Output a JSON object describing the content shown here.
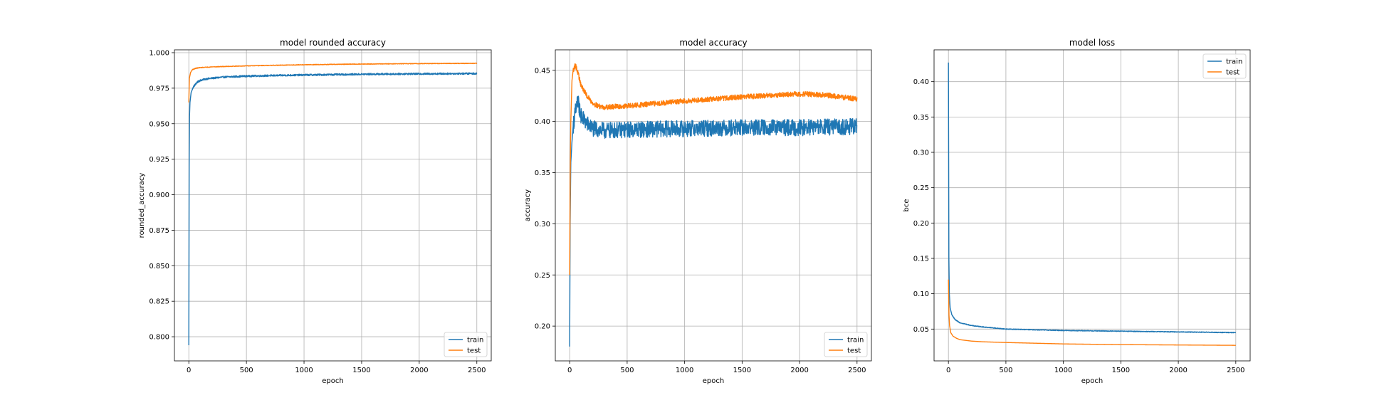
{
  "chart_data": [
    {
      "type": "line",
      "title": "model rounded accuracy",
      "xlabel": "epoch",
      "ylabel": "rounded_accuracy",
      "xlim": [
        -125,
        2625
      ],
      "ylim": [
        0.783,
        1.002
      ],
      "xticks": [
        0,
        500,
        1000,
        1500,
        2000,
        2500
      ],
      "yticks": [
        0.8,
        0.825,
        0.85,
        0.875,
        0.9,
        0.925,
        0.95,
        0.975,
        1.0
      ],
      "ytick_decimals": 3,
      "grid": true,
      "legend_position": "lower-right",
      "series": [
        {
          "name": "train",
          "color": "#1f77b4",
          "noise": 0.0006,
          "points": [
            [
              0,
              0.794
            ],
            [
              3,
              0.92
            ],
            [
              6,
              0.955
            ],
            [
              10,
              0.965
            ],
            [
              20,
              0.972
            ],
            [
              40,
              0.976
            ],
            [
              70,
              0.979
            ],
            [
              100,
              0.9805
            ],
            [
              150,
              0.9815
            ],
            [
              200,
              0.982
            ],
            [
              300,
              0.9828
            ],
            [
              500,
              0.9835
            ],
            [
              800,
              0.984
            ],
            [
              1000,
              0.9843
            ],
            [
              1500,
              0.9848
            ],
            [
              2000,
              0.9851
            ],
            [
              2500,
              0.9853
            ]
          ]
        },
        {
          "name": "test",
          "color": "#ff7f0e",
          "noise": 0.0002,
          "points": [
            [
              0,
              0.965
            ],
            [
              5,
              0.982
            ],
            [
              15,
              0.986
            ],
            [
              30,
              0.988
            ],
            [
              60,
              0.989
            ],
            [
              100,
              0.9895
            ],
            [
              200,
              0.99
            ],
            [
              500,
              0.9907
            ],
            [
              1000,
              0.9915
            ],
            [
              1500,
              0.992
            ],
            [
              2000,
              0.9923
            ],
            [
              2500,
              0.9925
            ]
          ]
        }
      ]
    },
    {
      "type": "line",
      "title": "model accuracy",
      "xlabel": "epoch",
      "ylabel": "accuracy",
      "xlim": [
        -125,
        2625
      ],
      "ylim": [
        0.166,
        0.47
      ],
      "xticks": [
        0,
        500,
        1000,
        1500,
        2000,
        2500
      ],
      "yticks": [
        0.2,
        0.25,
        0.3,
        0.35,
        0.4,
        0.45
      ],
      "ytick_decimals": 2,
      "grid": true,
      "legend_position": "lower-right",
      "series": [
        {
          "name": "train",
          "color": "#1f77b4",
          "noise": 0.008,
          "points": [
            [
              0,
              0.18
            ],
            [
              4,
              0.3
            ],
            [
              10,
              0.36
            ],
            [
              20,
              0.38
            ],
            [
              30,
              0.395
            ],
            [
              50,
              0.41
            ],
            [
              70,
              0.42
            ],
            [
              100,
              0.405
            ],
            [
              150,
              0.398
            ],
            [
              200,
              0.393
            ],
            [
              300,
              0.391
            ],
            [
              500,
              0.392
            ],
            [
              1000,
              0.393
            ],
            [
              1500,
              0.394
            ],
            [
              2000,
              0.394
            ],
            [
              2500,
              0.395
            ]
          ]
        },
        {
          "name": "test",
          "color": "#ff7f0e",
          "noise": 0.0025,
          "points": [
            [
              0,
              0.25
            ],
            [
              5,
              0.35
            ],
            [
              10,
              0.4
            ],
            [
              20,
              0.44
            ],
            [
              30,
              0.45
            ],
            [
              50,
              0.455
            ],
            [
              70,
              0.448
            ],
            [
              100,
              0.435
            ],
            [
              150,
              0.425
            ],
            [
              200,
              0.418
            ],
            [
              250,
              0.415
            ],
            [
              300,
              0.414
            ],
            [
              500,
              0.415
            ],
            [
              800,
              0.418
            ],
            [
              1000,
              0.42
            ],
            [
              1500,
              0.424
            ],
            [
              2000,
              0.427
            ],
            [
              2200,
              0.426
            ],
            [
              2500,
              0.422
            ]
          ]
        }
      ]
    },
    {
      "type": "line",
      "title": "model loss",
      "xlabel": "epoch",
      "ylabel": "bce",
      "xlim": [
        -125,
        2625
      ],
      "ylim": [
        0.005,
        0.445
      ],
      "xticks": [
        0,
        500,
        1000,
        1500,
        2000,
        2500
      ],
      "yticks": [
        0.05,
        0.1,
        0.15,
        0.2,
        0.25,
        0.3,
        0.35,
        0.4
      ],
      "ytick_decimals": 2,
      "grid": true,
      "legend_position": "upper-right",
      "series": [
        {
          "name": "train",
          "color": "#1f77b4",
          "noise": 0.0005,
          "points": [
            [
              0,
              0.427
            ],
            [
              2,
              0.3
            ],
            [
              4,
              0.15
            ],
            [
              8,
              0.1
            ],
            [
              15,
              0.08
            ],
            [
              30,
              0.07
            ],
            [
              60,
              0.063
            ],
            [
              100,
              0.059
            ],
            [
              200,
              0.055
            ],
            [
              300,
              0.053
            ],
            [
              500,
              0.05
            ],
            [
              1000,
              0.048
            ],
            [
              1500,
              0.047
            ],
            [
              2000,
              0.046
            ],
            [
              2500,
              0.045
            ]
          ]
        },
        {
          "name": "test",
          "color": "#ff7f0e",
          "noise": 0.0,
          "points": [
            [
              0,
              0.12
            ],
            [
              5,
              0.07
            ],
            [
              10,
              0.055
            ],
            [
              20,
              0.045
            ],
            [
              40,
              0.04
            ],
            [
              70,
              0.037
            ],
            [
              100,
              0.035
            ],
            [
              200,
              0.033
            ],
            [
              300,
              0.032
            ],
            [
              500,
              0.031
            ],
            [
              1000,
              0.029
            ],
            [
              1500,
              0.028
            ],
            [
              2000,
              0.0275
            ],
            [
              2500,
              0.027
            ]
          ]
        }
      ]
    }
  ]
}
